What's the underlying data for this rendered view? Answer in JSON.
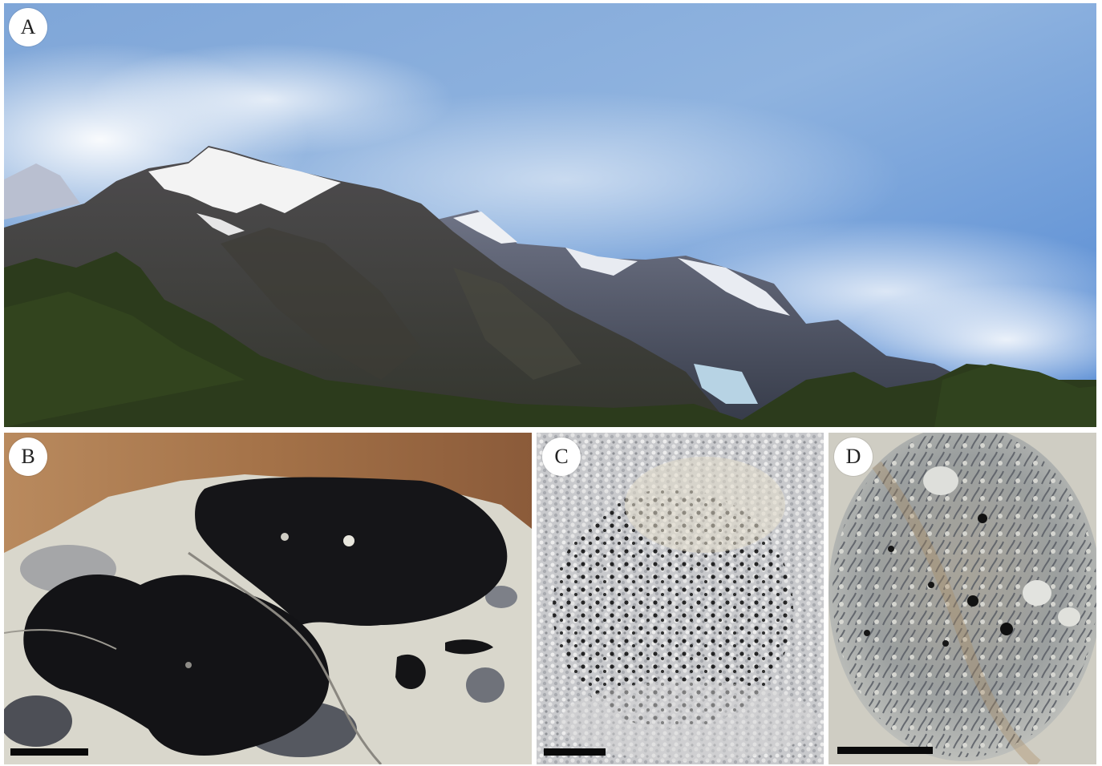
{
  "panels": [
    {
      "label": "A",
      "subject": "mountain-landscape-photo"
    },
    {
      "label": "B",
      "subject": "black-crustose-lichen-on-rock"
    },
    {
      "label": "C",
      "subject": "grey-lichen-with-black-apothecia"
    },
    {
      "label": "D",
      "subject": "foliose-lichen-rosette"
    }
  ],
  "colors": {
    "sky": "#6b9bd8",
    "snow": "#f4f4f4",
    "rock_dark": "#3c3f47",
    "forest": "#2e3d1f",
    "lichen_black": "#141418",
    "rock_pale": "#d8d6cc"
  }
}
